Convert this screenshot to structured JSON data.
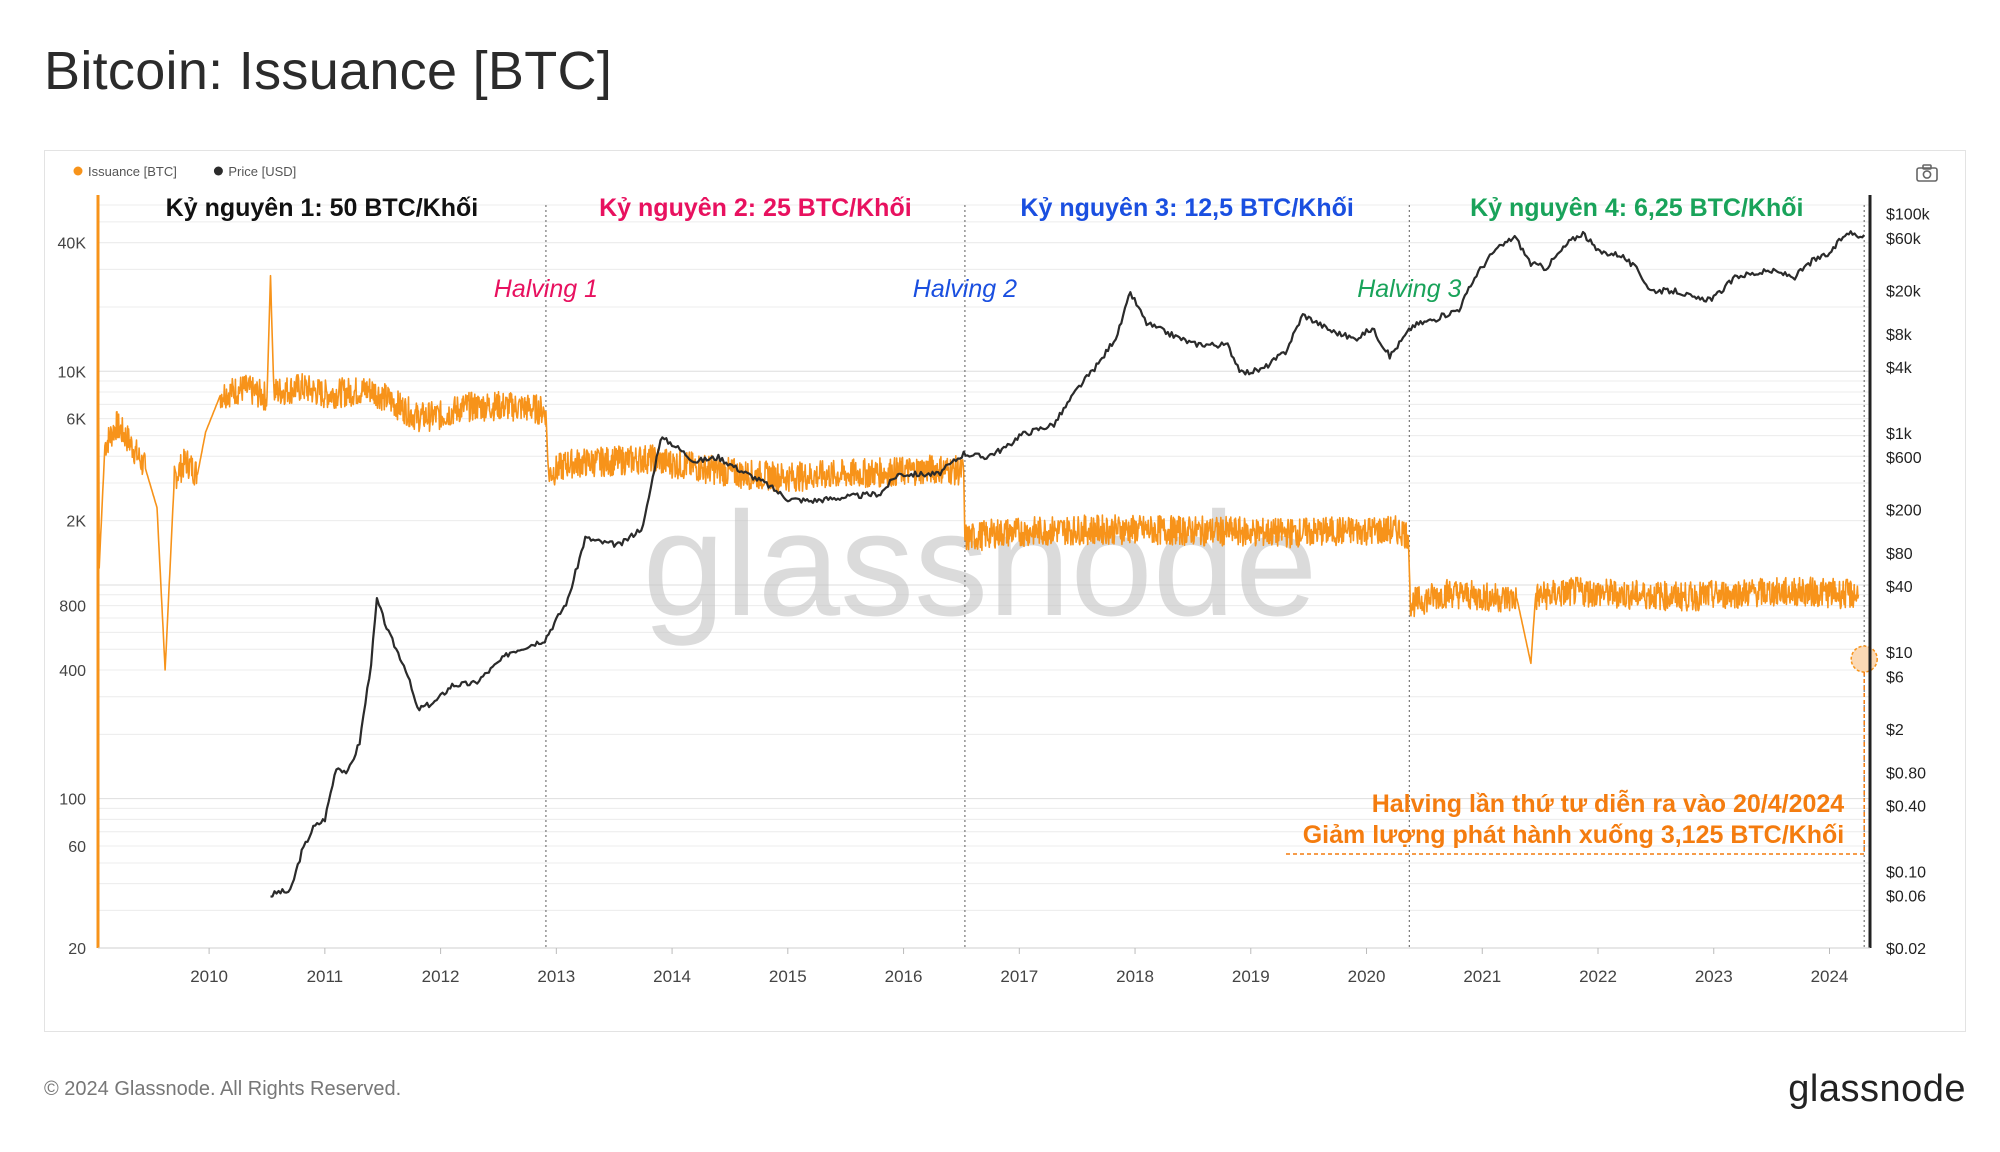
{
  "title": "Bitcoin: Issuance [BTC]",
  "footer": {
    "copyright": "© 2024 Glassnode. All Rights Reserved.",
    "logo": "glassnode"
  },
  "watermark": "glassnode",
  "icons": {
    "camera": "camera-icon"
  },
  "chart_data": {
    "type": "line",
    "title": "Bitcoin: Issuance [BTC]",
    "legend": [
      {
        "name": "Issuance [BTC]",
        "color": "#f7931a"
      },
      {
        "name": "Price [USD]",
        "color": "#2b2b2b"
      }
    ],
    "legend_position": "top-left",
    "x_ticks": [
      "2010",
      "2011",
      "2012",
      "2013",
      "2014",
      "2015",
      "2016",
      "2017",
      "2018",
      "2019",
      "2020",
      "2021",
      "2022",
      "2023",
      "2024"
    ],
    "xlim": [
      2009.04,
      2024.35
    ],
    "y_left": {
      "scale": "log",
      "ylim": [
        20,
        60000
      ],
      "ticks": [
        {
          "value": 20,
          "label": "20"
        },
        {
          "value": 60,
          "label": "60"
        },
        {
          "value": 100,
          "label": "100"
        },
        {
          "value": 400,
          "label": "400"
        },
        {
          "value": 800,
          "label": "800"
        },
        {
          "value": 2000,
          "label": "2K"
        },
        {
          "value": 6000,
          "label": "6K"
        },
        {
          "value": 10000,
          "label": "10K"
        },
        {
          "value": 40000,
          "label": "40K"
        }
      ]
    },
    "y_right": {
      "scale": "log",
      "ylim": [
        0.02,
        120000
      ],
      "ticks": [
        {
          "value": 0.02,
          "label": "$0.02"
        },
        {
          "value": 0.06,
          "label": "$0.06"
        },
        {
          "value": 0.1,
          "label": "$0.10"
        },
        {
          "value": 0.4,
          "label": "$0.40"
        },
        {
          "value": 0.8,
          "label": "$0.80"
        },
        {
          "value": 2,
          "label": "$2"
        },
        {
          "value": 6,
          "label": "$6"
        },
        {
          "value": 10,
          "label": "$10"
        },
        {
          "value": 40,
          "label": "$40"
        },
        {
          "value": 80,
          "label": "$80"
        },
        {
          "value": 200,
          "label": "$200"
        },
        {
          "value": 600,
          "label": "$600"
        },
        {
          "value": 1000,
          "label": "$1k"
        },
        {
          "value": 4000,
          "label": "$4k"
        },
        {
          "value": 8000,
          "label": "$8k"
        },
        {
          "value": 20000,
          "label": "$20k"
        },
        {
          "value": 60000,
          "label": "$60k"
        },
        {
          "value": 100000,
          "label": "$100k"
        }
      ]
    },
    "grid": true,
    "series": [
      {
        "name": "Issuance [BTC]",
        "axis": "left",
        "color": "#f7931a",
        "points": [
          [
            2009.04,
            60000
          ],
          [
            2009.05,
            1200
          ],
          [
            2009.1,
            4500
          ],
          [
            2009.2,
            5600
          ],
          [
            2009.3,
            4800
          ],
          [
            2009.45,
            3500
          ],
          [
            2009.55,
            2300
          ],
          [
            2009.62,
            400
          ],
          [
            2009.7,
            3200
          ],
          [
            2009.8,
            3800
          ],
          [
            2009.9,
            3300
          ],
          [
            2009.97,
            5200
          ],
          [
            2010.1,
            7800
          ],
          [
            2010.3,
            8300
          ],
          [
            2010.5,
            7600
          ],
          [
            2010.53,
            28000
          ],
          [
            2010.56,
            8000
          ],
          [
            2010.8,
            8400
          ],
          [
            2011.0,
            7800
          ],
          [
            2011.2,
            8000
          ],
          [
            2011.4,
            8200
          ],
          [
            2011.6,
            7100
          ],
          [
            2011.8,
            6100
          ],
          [
            2012.0,
            6200
          ],
          [
            2012.2,
            6800
          ],
          [
            2012.5,
            6900
          ],
          [
            2012.8,
            6700
          ],
          [
            2012.91,
            6500
          ],
          [
            2012.93,
            3300
          ],
          [
            2013.1,
            3700
          ],
          [
            2013.5,
            3800
          ],
          [
            2013.8,
            3900
          ],
          [
            2014.0,
            3700
          ],
          [
            2014.3,
            3500
          ],
          [
            2014.6,
            3300
          ],
          [
            2015.0,
            3200
          ],
          [
            2015.5,
            3300
          ],
          [
            2016.0,
            3400
          ],
          [
            2016.3,
            3500
          ],
          [
            2016.52,
            3400
          ],
          [
            2016.53,
            1650
          ],
          [
            2016.8,
            1750
          ],
          [
            2017.3,
            1800
          ],
          [
            2017.8,
            1820
          ],
          [
            2018.3,
            1800
          ],
          [
            2018.8,
            1780
          ],
          [
            2019.3,
            1750
          ],
          [
            2019.8,
            1790
          ],
          [
            2020.3,
            1800
          ],
          [
            2020.36,
            1700
          ],
          [
            2020.38,
            820
          ],
          [
            2020.7,
            920
          ],
          [
            2021.0,
            880
          ],
          [
            2021.3,
            860
          ],
          [
            2021.42,
            430
          ],
          [
            2021.46,
            880
          ],
          [
            2021.8,
            930
          ],
          [
            2022.3,
            900
          ],
          [
            2022.8,
            880
          ],
          [
            2023.3,
            920
          ],
          [
            2023.8,
            930
          ],
          [
            2024.25,
            900
          ]
        ]
      },
      {
        "name": "Price [USD]",
        "axis": "right",
        "color": "#2b2b2b",
        "points": [
          [
            2010.53,
            0.06
          ],
          [
            2010.6,
            0.065
          ],
          [
            2010.7,
            0.065
          ],
          [
            2010.8,
            0.15
          ],
          [
            2010.9,
            0.25
          ],
          [
            2011.0,
            0.3
          ],
          [
            2011.1,
            0.9
          ],
          [
            2011.2,
            0.8
          ],
          [
            2011.3,
            1.5
          ],
          [
            2011.4,
            8
          ],
          [
            2011.45,
            30
          ],
          [
            2011.55,
            15
          ],
          [
            2011.7,
            7
          ],
          [
            2011.8,
            3
          ],
          [
            2011.95,
            3.5
          ],
          [
            2012.1,
            5
          ],
          [
            2012.3,
            5.2
          ],
          [
            2012.6,
            10
          ],
          [
            2012.9,
            13
          ],
          [
            2013.1,
            30
          ],
          [
            2013.25,
            110
          ],
          [
            2013.4,
            100
          ],
          [
            2013.55,
            95
          ],
          [
            2013.75,
            140
          ],
          [
            2013.9,
            900
          ],
          [
            2014.0,
            800
          ],
          [
            2014.2,
            550
          ],
          [
            2014.4,
            600
          ],
          [
            2014.6,
            450
          ],
          [
            2014.8,
            350
          ],
          [
            2015.0,
            250
          ],
          [
            2015.2,
            240
          ],
          [
            2015.5,
            260
          ],
          [
            2015.8,
            280
          ],
          [
            2015.95,
            420
          ],
          [
            2016.3,
            420
          ],
          [
            2016.52,
            650
          ],
          [
            2016.7,
            600
          ],
          [
            2016.9,
            750
          ],
          [
            2017.0,
            950
          ],
          [
            2017.3,
            1200
          ],
          [
            2017.5,
            2500
          ],
          [
            2017.7,
            4500
          ],
          [
            2017.85,
            8000
          ],
          [
            2017.96,
            19000
          ],
          [
            2018.1,
            10000
          ],
          [
            2018.3,
            8000
          ],
          [
            2018.5,
            6500
          ],
          [
            2018.8,
            6300
          ],
          [
            2018.92,
            3500
          ],
          [
            2019.1,
            3800
          ],
          [
            2019.3,
            5500
          ],
          [
            2019.45,
            12000
          ],
          [
            2019.7,
            8500
          ],
          [
            2019.9,
            7200
          ],
          [
            2020.05,
            9000
          ],
          [
            2020.2,
            5000
          ],
          [
            2020.4,
            9500
          ],
          [
            2020.6,
            11000
          ],
          [
            2020.8,
            13500
          ],
          [
            2020.95,
            28000
          ],
          [
            2021.1,
            45000
          ],
          [
            2021.28,
            62000
          ],
          [
            2021.42,
            35000
          ],
          [
            2021.55,
            32000
          ],
          [
            2021.75,
            55000
          ],
          [
            2021.87,
            67000
          ],
          [
            2022.0,
            45000
          ],
          [
            2022.2,
            42000
          ],
          [
            2022.35,
            30000
          ],
          [
            2022.45,
            20000
          ],
          [
            2022.7,
            19500
          ],
          [
            2022.85,
            16500
          ],
          [
            2023.0,
            17000
          ],
          [
            2023.2,
            27000
          ],
          [
            2023.5,
            30000
          ],
          [
            2023.7,
            26500
          ],
          [
            2023.85,
            37000
          ],
          [
            2024.0,
            43000
          ],
          [
            2024.15,
            68000
          ],
          [
            2024.25,
            63000
          ],
          [
            2024.3,
            64000
          ]
        ]
      }
    ],
    "eras": [
      {
        "label": "Kỷ nguyên 1: 50 BTC/Khối",
        "color": "#111111",
        "x_start": 2009.04,
        "x_end": 2012.91
      },
      {
        "label": "Kỷ nguyên 2: 25 BTC/Khối",
        "color": "#e8115f",
        "x_start": 2012.91,
        "x_end": 2016.53
      },
      {
        "label": "Kỷ nguyên 3: 12,5 BTC/Khối",
        "color": "#1a4fe0",
        "x_start": 2016.53,
        "x_end": 2020.37
      },
      {
        "label": "Kỷ nguyên 4: 6,25 BTC/Khối",
        "color": "#19a35a",
        "x_start": 2020.37,
        "x_end": 2024.3
      }
    ],
    "halvings": [
      {
        "label": "Halving 1",
        "x": 2012.91,
        "color": "#e8115f"
      },
      {
        "label": "Halving 2",
        "x": 2016.53,
        "color": "#1a4fe0"
      },
      {
        "label": "Halving 3",
        "x": 2020.37,
        "color": "#19a35a"
      },
      {
        "label": "",
        "x": 2024.3,
        "color": "#444444"
      }
    ],
    "annotations": [
      {
        "text": "Halving lần thứ tư diễn ra vào 20/4/2024",
        "color": "#f47c0f"
      },
      {
        "text": "Giảm lượng phát hành xuống 3,125 BTC/Khối",
        "color": "#f47c0f"
      }
    ],
    "marker": {
      "x": 2024.3,
      "y": 450,
      "axis": "left",
      "color": "#f7931a"
    }
  }
}
